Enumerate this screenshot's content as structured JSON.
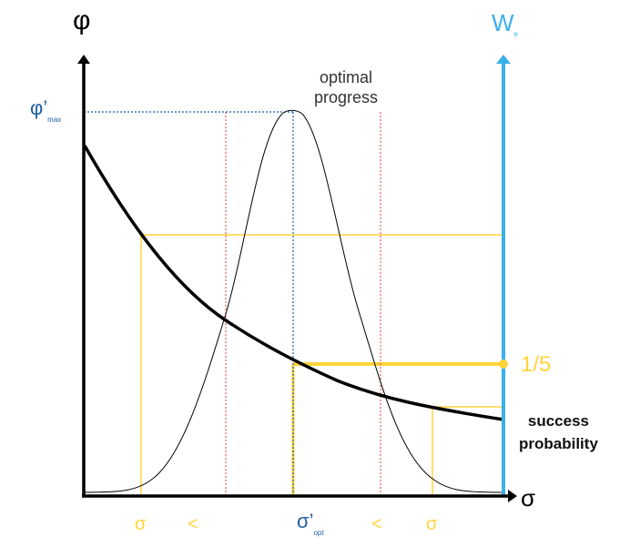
{
  "y_axis_label": "φ",
  "right_axis_label": "W",
  "right_axis_subscript": "e",
  "x_axis_label": "σ",
  "phi_max_label": "φ’",
  "phi_max_subscript": "max",
  "optimal_progress_line1": "optimal",
  "optimal_progress_line2": "progress",
  "one_fifth_label": "1/5",
  "success_line1": "success",
  "success_line2": "probability",
  "x_ticks": {
    "sigma_small": "σ",
    "less_left": "<",
    "sigma_opt": "σ’",
    "sigma_opt_subscript": "opt",
    "less_right": "<",
    "sigma_large": "σ"
  },
  "colors": {
    "axis": "#000000",
    "right_axis": "#39b0ea",
    "yellow": "#ffd43b",
    "blue_dotted": "#1f5faa",
    "red_dotted": "#e04040"
  }
}
